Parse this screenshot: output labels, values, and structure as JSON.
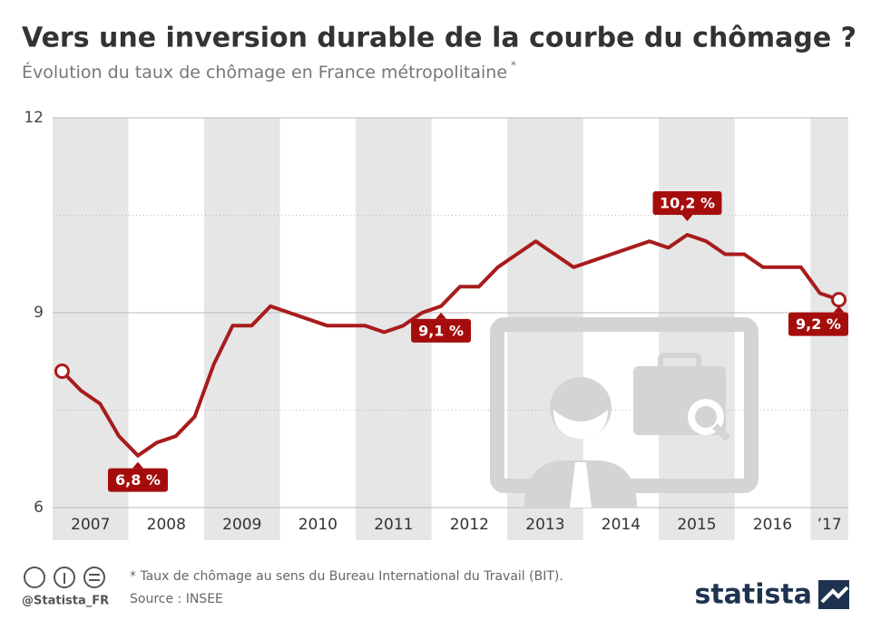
{
  "chart_data": {
    "type": "line",
    "title": "Vers une inversion durable de la courbe du chômage ?",
    "subtitle": "Évolution du taux de chômage en France métropolitaine",
    "subtitle_note": "*",
    "color": "#a81c1c",
    "years": [
      {
        "label": "2007",
        "values": [
          8.1,
          7.8,
          7.6,
          7.1
        ],
        "value_labels": [
          null,
          null,
          null,
          null
        ]
      },
      {
        "label": "2008",
        "values": [
          6.8,
          7.0,
          7.1,
          7.4
        ],
        "value_labels": [
          "6,8 %",
          null,
          null,
          null
        ]
      },
      {
        "label": "2009",
        "values": [
          8.2,
          8.8,
          8.8,
          9.1
        ],
        "value_labels": [
          null,
          null,
          null,
          null
        ]
      },
      {
        "label": "2010",
        "values": [
          9.0,
          8.9,
          8.8,
          8.8
        ],
        "value_labels": [
          null,
          null,
          null,
          null
        ]
      },
      {
        "label": "2011",
        "values": [
          8.8,
          8.7,
          8.8,
          9.0
        ],
        "value_labels": [
          null,
          null,
          null,
          null
        ]
      },
      {
        "label": "2012",
        "values": [
          9.1,
          9.4,
          9.4,
          9.7
        ],
        "value_labels": [
          "9,1 %",
          null,
          null,
          null
        ]
      },
      {
        "label": "2013",
        "values": [
          9.9,
          10.1,
          9.9,
          9.7
        ],
        "value_labels": [
          null,
          null,
          null,
          null
        ]
      },
      {
        "label": "2014",
        "values": [
          9.8,
          9.9,
          10.0,
          10.1
        ],
        "value_labels": [
          null,
          null,
          null,
          null
        ]
      },
      {
        "label": "2015",
        "values": [
          10.0,
          10.2,
          10.1,
          9.9
        ],
        "value_labels": [
          null,
          "10,2 %",
          null,
          null
        ]
      },
      {
        "label": "2016",
        "values": [
          9.9,
          9.7,
          9.7,
          9.7
        ],
        "value_labels": [
          null,
          null,
          null,
          null
        ]
      },
      {
        "label": "’17",
        "values": [
          9.3,
          9.2
        ],
        "value_labels": [
          null,
          "9,2 %"
        ]
      }
    ],
    "ylim": [
      6,
      12
    ],
    "yticks": [
      6,
      9,
      12
    ],
    "minor_yticks": [
      7.5,
      10.5
    ],
    "grid": true,
    "note": "* Taux de chômage au sens du Bureau International du Travail (BIT).",
    "source": "Source : INSEE",
    "handle": "@Statista_FR",
    "brand": "statista"
  }
}
